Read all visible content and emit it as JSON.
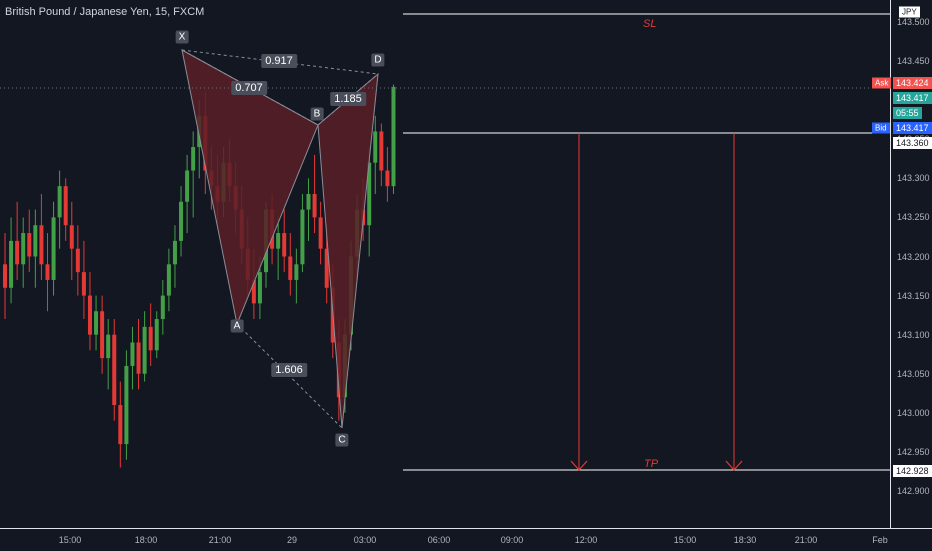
{
  "header": {
    "title": "British Pound / Japanese Yen, 15, FXCM"
  },
  "colors": {
    "background": "#131722",
    "up": "#43a047",
    "down": "#e53935",
    "pattern_fill": "#5a1e26",
    "pattern_line": "#8a8e99",
    "ask": "#f05350",
    "bid": "#2962ff",
    "last": "#26a69a"
  },
  "axis": {
    "y_ticks": [
      "143.500",
      "143.450",
      "143.400",
      "143.350",
      "143.300",
      "143.250",
      "143.200",
      "143.150",
      "143.100",
      "143.050",
      "143.000",
      "142.950",
      "142.900"
    ],
    "x_ticks": [
      "15:00",
      "18:00",
      "21:00",
      "29",
      "03:00",
      "06:00",
      "09:00",
      "12:00",
      "15:00",
      "18:30",
      "21:00",
      "Feb"
    ],
    "currency": "JPY"
  },
  "price_labels": {
    "ask_tag": "Ask",
    "ask": "143.424",
    "last": "143.417",
    "countdown": "05:55",
    "bid_tag": "Bid",
    "bid": "143.417",
    "line_level": "143.360",
    "tp_level": "142.928"
  },
  "levels": {
    "sl": "SL",
    "tp": "TP"
  },
  "pattern": {
    "points": {
      "x": "X",
      "a": "A",
      "b": "B",
      "c": "C",
      "d": "D"
    },
    "ratios": {
      "xb": "0.917",
      "ab": "0.707",
      "bd": "1.185",
      "ac": "1.606"
    }
  },
  "chart_data": {
    "type": "candlestick",
    "title": "British Pound / Japanese Yen, 15, FXCM",
    "ylim": [
      142.88,
      143.53
    ],
    "candles": [
      {
        "o": 143.19,
        "h": 143.23,
        "l": 143.12,
        "c": 143.16
      },
      {
        "o": 143.16,
        "h": 143.25,
        "l": 143.14,
        "c": 143.22
      },
      {
        "o": 143.22,
        "h": 143.27,
        "l": 143.17,
        "c": 143.19
      },
      {
        "o": 143.19,
        "h": 143.25,
        "l": 143.16,
        "c": 143.23
      },
      {
        "o": 143.23,
        "h": 143.26,
        "l": 143.18,
        "c": 143.2
      },
      {
        "o": 143.2,
        "h": 143.26,
        "l": 143.16,
        "c": 143.24
      },
      {
        "o": 143.24,
        "h": 143.28,
        "l": 143.17,
        "c": 143.19
      },
      {
        "o": 143.19,
        "h": 143.23,
        "l": 143.13,
        "c": 143.17
      },
      {
        "o": 143.17,
        "h": 143.27,
        "l": 143.15,
        "c": 143.25
      },
      {
        "o": 143.25,
        "h": 143.31,
        "l": 143.21,
        "c": 143.29
      },
      {
        "o": 143.29,
        "h": 143.3,
        "l": 143.22,
        "c": 143.24
      },
      {
        "o": 143.24,
        "h": 143.27,
        "l": 143.17,
        "c": 143.21
      },
      {
        "o": 143.21,
        "h": 143.24,
        "l": 143.15,
        "c": 143.18
      },
      {
        "o": 143.18,
        "h": 143.22,
        "l": 143.12,
        "c": 143.15
      },
      {
        "o": 143.15,
        "h": 143.18,
        "l": 143.08,
        "c": 143.1
      },
      {
        "o": 143.1,
        "h": 143.15,
        "l": 143.08,
        "c": 143.13
      },
      {
        "o": 143.13,
        "h": 143.15,
        "l": 143.05,
        "c": 143.07
      },
      {
        "o": 143.07,
        "h": 143.12,
        "l": 143.03,
        "c": 143.1
      },
      {
        "o": 143.1,
        "h": 143.12,
        "l": 142.99,
        "c": 143.01
      },
      {
        "o": 143.01,
        "h": 143.04,
        "l": 142.93,
        "c": 142.96
      },
      {
        "o": 142.96,
        "h": 143.08,
        "l": 142.94,
        "c": 143.06
      },
      {
        "o": 143.06,
        "h": 143.11,
        "l": 143.03,
        "c": 143.09
      },
      {
        "o": 143.09,
        "h": 143.12,
        "l": 143.03,
        "c": 143.05
      },
      {
        "o": 143.05,
        "h": 143.13,
        "l": 143.04,
        "c": 143.11
      },
      {
        "o": 143.11,
        "h": 143.14,
        "l": 143.06,
        "c": 143.08
      },
      {
        "o": 143.08,
        "h": 143.13,
        "l": 143.07,
        "c": 143.12
      },
      {
        "o": 143.12,
        "h": 143.17,
        "l": 143.1,
        "c": 143.15
      },
      {
        "o": 143.15,
        "h": 143.21,
        "l": 143.13,
        "c": 143.19
      },
      {
        "o": 143.19,
        "h": 143.24,
        "l": 143.16,
        "c": 143.22
      },
      {
        "o": 143.22,
        "h": 143.29,
        "l": 143.2,
        "c": 143.27
      },
      {
        "o": 143.27,
        "h": 143.33,
        "l": 143.23,
        "c": 143.31
      },
      {
        "o": 143.31,
        "h": 143.36,
        "l": 143.25,
        "c": 143.34
      },
      {
        "o": 143.34,
        "h": 143.4,
        "l": 143.3,
        "c": 143.38
      },
      {
        "o": 143.38,
        "h": 143.41,
        "l": 143.28,
        "c": 143.31
      },
      {
        "o": 143.31,
        "h": 143.34,
        "l": 143.26,
        "c": 143.29
      },
      {
        "o": 143.29,
        "h": 143.33,
        "l": 143.24,
        "c": 143.27
      },
      {
        "o": 143.27,
        "h": 143.34,
        "l": 143.25,
        "c": 143.32
      },
      {
        "o": 143.32,
        "h": 143.35,
        "l": 143.27,
        "c": 143.29
      },
      {
        "o": 143.29,
        "h": 143.32,
        "l": 143.23,
        "c": 143.26
      },
      {
        "o": 143.26,
        "h": 143.29,
        "l": 143.19,
        "c": 143.21
      },
      {
        "o": 143.21,
        "h": 143.25,
        "l": 143.15,
        "c": 143.17
      },
      {
        "o": 143.17,
        "h": 143.21,
        "l": 143.12,
        "c": 143.14
      },
      {
        "o": 143.14,
        "h": 143.2,
        "l": 143.12,
        "c": 143.18
      },
      {
        "o": 143.18,
        "h": 143.27,
        "l": 143.16,
        "c": 143.26
      },
      {
        "o": 143.26,
        "h": 143.28,
        "l": 143.19,
        "c": 143.21
      },
      {
        "o": 143.21,
        "h": 143.25,
        "l": 143.17,
        "c": 143.23
      },
      {
        "o": 143.23,
        "h": 143.26,
        "l": 143.18,
        "c": 143.2
      },
      {
        "o": 143.2,
        "h": 143.23,
        "l": 143.15,
        "c": 143.17
      },
      {
        "o": 143.17,
        "h": 143.21,
        "l": 143.14,
        "c": 143.19
      },
      {
        "o": 143.19,
        "h": 143.28,
        "l": 143.18,
        "c": 143.26
      },
      {
        "o": 143.26,
        "h": 143.3,
        "l": 143.22,
        "c": 143.28
      },
      {
        "o": 143.28,
        "h": 143.33,
        "l": 143.23,
        "c": 143.25
      },
      {
        "o": 143.25,
        "h": 143.27,
        "l": 143.19,
        "c": 143.21
      },
      {
        "o": 143.21,
        "h": 143.24,
        "l": 143.14,
        "c": 143.16
      },
      {
        "o": 143.16,
        "h": 143.19,
        "l": 143.07,
        "c": 143.09
      },
      {
        "o": 143.09,
        "h": 143.12,
        "l": 142.99,
        "c": 143.02
      },
      {
        "o": 143.02,
        "h": 143.12,
        "l": 143.0,
        "c": 143.1
      },
      {
        "o": 143.1,
        "h": 143.22,
        "l": 143.08,
        "c": 143.2
      },
      {
        "o": 143.2,
        "h": 143.28,
        "l": 143.17,
        "c": 143.26
      },
      {
        "o": 143.26,
        "h": 143.3,
        "l": 143.22,
        "c": 143.24
      },
      {
        "o": 143.24,
        "h": 143.34,
        "l": 143.2,
        "c": 143.32
      },
      {
        "o": 143.32,
        "h": 143.38,
        "l": 143.28,
        "c": 143.36
      },
      {
        "o": 143.36,
        "h": 143.37,
        "l": 143.29,
        "c": 143.31
      },
      {
        "o": 143.31,
        "h": 143.34,
        "l": 143.27,
        "c": 143.29
      },
      {
        "o": 143.29,
        "h": 143.42,
        "l": 143.28,
        "c": 143.417
      }
    ]
  }
}
